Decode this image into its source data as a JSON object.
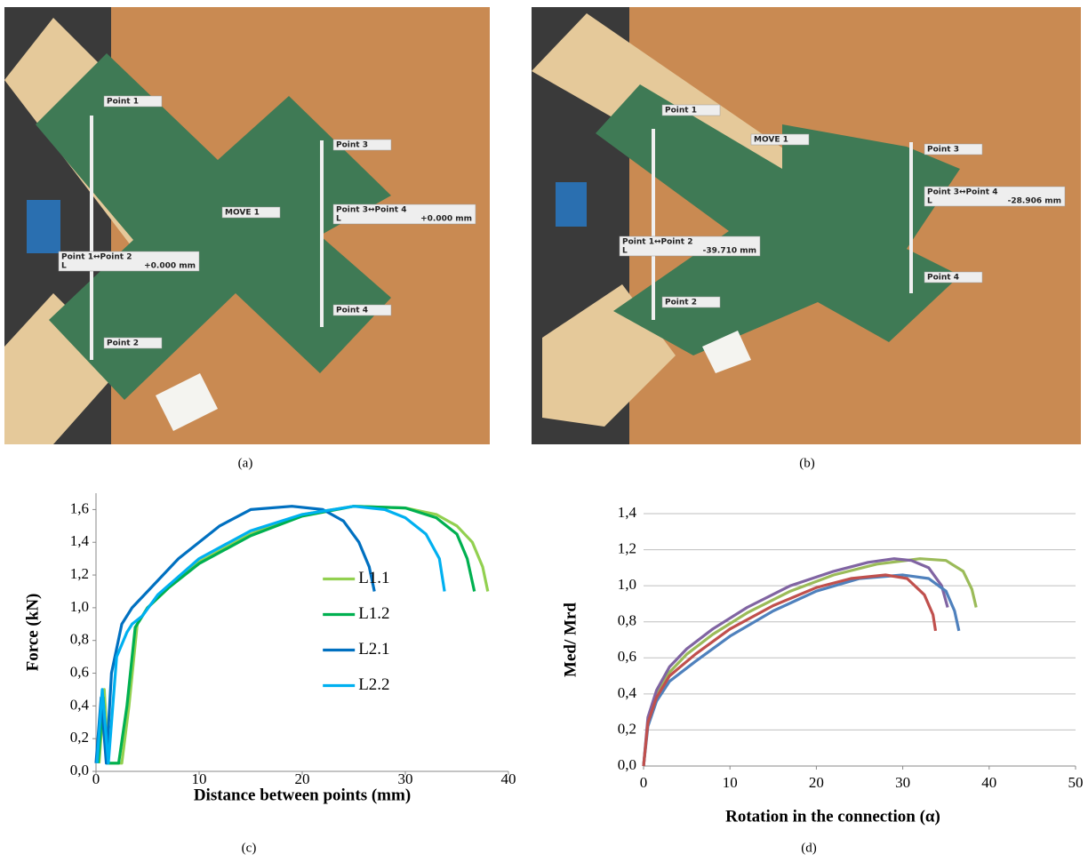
{
  "photos": [
    {
      "caption": "(a)",
      "marker_labels": [
        "Point 1",
        "Point 2",
        "Point 3",
        "Point 4",
        "MOVE 1"
      ],
      "measures": [
        {
          "title": "Point 1↔Point 2",
          "axis": "L",
          "value": "+0.000 mm"
        },
        {
          "title": "Point 3↔Point 4",
          "axis": "L",
          "value": "+0.000 mm"
        }
      ]
    },
    {
      "caption": "(b)",
      "marker_labels": [
        "Point 1",
        "Point 2",
        "Point 3",
        "Point 4",
        "MOVE 1"
      ],
      "measures": [
        {
          "title": "Point 1↔Point 2",
          "axis": "L",
          "value": "-39.710 mm"
        },
        {
          "title": "Point 3↔Point 4",
          "axis": "L",
          "value": "-28.906 mm"
        }
      ]
    }
  ],
  "chart_data": [
    {
      "type": "line",
      "caption": "(c)",
      "x_label": "Distance between points (mm)",
      "y_label": "Force (kN)",
      "xlim": [
        0,
        40
      ],
      "xticks": [
        0,
        10,
        20,
        30,
        40
      ],
      "ylim": [
        0,
        1.7
      ],
      "yticks": [
        {
          "value": 0,
          "label": "0,0"
        },
        {
          "value": 0.2,
          "label": "0,2"
        },
        {
          "value": 0.4,
          "label": "0,4"
        },
        {
          "value": 0.6,
          "label": "0,6"
        },
        {
          "value": 0.8,
          "label": "0,8"
        },
        {
          "value": 1.0,
          "label": "1,0"
        },
        {
          "value": 1.2,
          "label": "1,2"
        },
        {
          "value": 1.4,
          "label": "1,4"
        },
        {
          "value": 1.6,
          "label": "1,6"
        }
      ],
      "grid": false,
      "legend": "center-right",
      "series": [
        {
          "name": "L1.1",
          "color": "#92d050",
          "x": [
            0.3,
            0.8,
            1.2,
            2.5,
            3.2,
            4,
            5,
            7,
            10,
            15,
            20,
            25,
            30,
            33,
            35,
            36.5,
            37.5,
            38
          ],
          "values": [
            0.05,
            0.5,
            0.05,
            0.05,
            0.4,
            0.9,
            1.0,
            1.12,
            1.28,
            1.45,
            1.57,
            1.62,
            1.61,
            1.57,
            1.5,
            1.4,
            1.25,
            1.1
          ]
        },
        {
          "name": "L1.2",
          "color": "#00b050",
          "x": [
            0.2,
            0.7,
            1.1,
            2.2,
            3,
            3.8,
            5,
            7,
            10,
            15,
            20,
            25,
            30,
            33,
            35,
            36,
            36.7
          ],
          "values": [
            0.05,
            0.45,
            0.05,
            0.05,
            0.4,
            0.88,
            1.0,
            1.12,
            1.27,
            1.44,
            1.56,
            1.62,
            1.61,
            1.55,
            1.45,
            1.3,
            1.1
          ]
        },
        {
          "name": "L2.1",
          "color": "#0070c0",
          "x": [
            0,
            0.5,
            1,
            1.5,
            2.5,
            3.5,
            5,
            8,
            12,
            15,
            19,
            22,
            24,
            25.5,
            26.5,
            27
          ],
          "values": [
            0.05,
            0.45,
            0.05,
            0.6,
            0.9,
            1.0,
            1.1,
            1.3,
            1.5,
            1.6,
            1.62,
            1.6,
            1.53,
            1.4,
            1.25,
            1.1
          ]
        },
        {
          "name": "L2.2",
          "color": "#00b0f0",
          "x": [
            0.1,
            0.6,
            1.2,
            2,
            3,
            3.5,
            4.5,
            6,
            10,
            15,
            20,
            25,
            28,
            30,
            32,
            33.3,
            33.8
          ],
          "values": [
            0.05,
            0.5,
            0.05,
            0.7,
            0.85,
            0.9,
            0.95,
            1.08,
            1.3,
            1.47,
            1.57,
            1.62,
            1.6,
            1.55,
            1.45,
            1.3,
            1.1
          ]
        }
      ]
    },
    {
      "type": "line",
      "caption": "(d)",
      "x_label": "Rotation in the connection (α)",
      "y_label": "Med/ Mrd",
      "xlim": [
        0,
        50
      ],
      "xticks": [
        0,
        10,
        20,
        30,
        40,
        50
      ],
      "ylim": [
        0,
        1.4
      ],
      "yticks": [
        {
          "value": 0,
          "label": "0,0"
        },
        {
          "value": 0.2,
          "label": "0,2"
        },
        {
          "value": 0.4,
          "label": "0,4"
        },
        {
          "value": 0.6,
          "label": "0,6"
        },
        {
          "value": 0.8,
          "label": "0,8"
        },
        {
          "value": 1.0,
          "label": "1,0"
        },
        {
          "value": 1.2,
          "label": "1,2"
        },
        {
          "value": 1.4,
          "label": "1,4"
        }
      ],
      "grid": true,
      "series": [
        {
          "color": "#9bbb59",
          "x": [
            0,
            0.5,
            1.5,
            3,
            5,
            8,
            12,
            17,
            22,
            27,
            32,
            35,
            37,
            38,
            38.5
          ],
          "values": [
            0,
            0.25,
            0.4,
            0.52,
            0.62,
            0.73,
            0.85,
            0.97,
            1.06,
            1.12,
            1.15,
            1.14,
            1.08,
            0.98,
            0.88
          ]
        },
        {
          "color": "#8064a2",
          "x": [
            0,
            0.5,
            1.5,
            3,
            5,
            8,
            12,
            17,
            22,
            26,
            29,
            31,
            33,
            34.5,
            35.2
          ],
          "values": [
            0,
            0.27,
            0.42,
            0.55,
            0.65,
            0.76,
            0.88,
            1.0,
            1.08,
            1.13,
            1.15,
            1.14,
            1.1,
            1.0,
            0.88
          ]
        },
        {
          "color": "#4f81bd",
          "x": [
            0,
            0.5,
            1.5,
            3,
            6,
            10,
            15,
            20,
            25,
            30,
            33,
            35,
            36,
            36.5
          ],
          "values": [
            0,
            0.22,
            0.36,
            0.47,
            0.58,
            0.72,
            0.86,
            0.97,
            1.04,
            1.06,
            1.04,
            0.97,
            0.86,
            0.75
          ]
        },
        {
          "color": "#c0504d",
          "x": [
            0,
            0.5,
            1.5,
            3,
            6,
            10,
            15,
            20,
            24,
            28,
            30.5,
            32.5,
            33.5,
            33.8
          ],
          "values": [
            0,
            0.24,
            0.38,
            0.5,
            0.62,
            0.76,
            0.89,
            0.99,
            1.04,
            1.06,
            1.04,
            0.95,
            0.84,
            0.75
          ]
        }
      ]
    }
  ]
}
